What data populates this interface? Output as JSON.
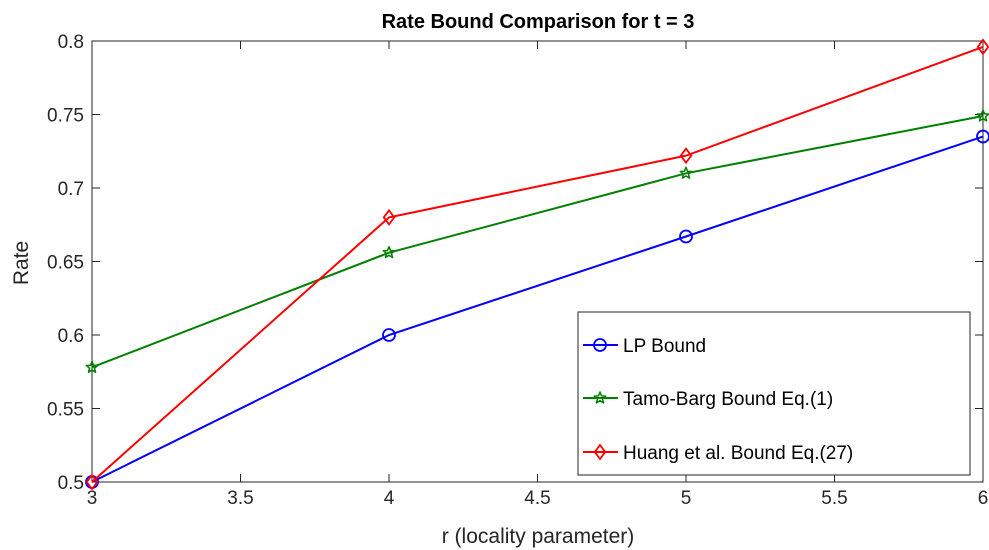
{
  "chart_data": {
    "type": "line",
    "title": "Rate Bound Comparison for t = 3",
    "xlabel": "r (locality parameter)",
    "ylabel": "Rate",
    "xlim": [
      3,
      6
    ],
    "ylim": [
      0.5,
      0.8
    ],
    "xticks": [
      "3",
      "3.5",
      "4",
      "4.5",
      "5",
      "5.5",
      "6"
    ],
    "yticks": [
      "0.5",
      "0.55",
      "0.6",
      "0.65",
      "0.7",
      "0.75",
      "0.8"
    ],
    "x": [
      3,
      4,
      5,
      6
    ],
    "grid": false,
    "legend_position": "bottom-right",
    "series": [
      {
        "name": "LP Bound",
        "values": [
          0.5,
          0.6,
          0.667,
          0.735
        ],
        "color": "#0000ff",
        "marker": "circle"
      },
      {
        "name": "Tamo-Barg Bound Eq.(1)",
        "values": [
          0.578,
          0.656,
          0.71,
          0.749
        ],
        "color": "#008000",
        "marker": "star"
      },
      {
        "name": "Huang et al. Bound Eq.(27)",
        "values": [
          0.5,
          0.68,
          0.722,
          0.796
        ],
        "color": "#ff0000",
        "marker": "diamond"
      }
    ]
  }
}
